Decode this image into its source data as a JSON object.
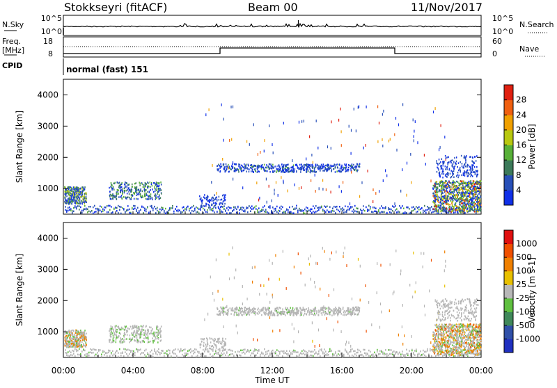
{
  "header": {
    "title": "Stokkseyri (fitACF)",
    "beam": "Beam 00",
    "date": "11/Nov/2017"
  },
  "noise_panel": {
    "left_label": "N.Sky",
    "right_label": "N.Search",
    "left_ticks": [
      "10^5",
      "10^0"
    ],
    "right_ticks": [
      "10^5",
      "10^0"
    ]
  },
  "freq_panel": {
    "left_label_1": "Freq.",
    "left_label_2": "[MHz]",
    "right_label": "Nave",
    "left_ticks": [
      "18",
      "8"
    ],
    "right_ticks": [
      "60",
      "0"
    ]
  },
  "cpid": {
    "label": "CPID",
    "mode": "normal (fast) 151"
  },
  "chart_data": [
    {
      "type": "heatmap",
      "title": "",
      "xlabel": "",
      "ylabel": "Slant Range [km]",
      "xlim": [
        "00:00",
        "24:00"
      ],
      "ylim": [
        180,
        4500
      ],
      "yticks": [
        "1000",
        "2000",
        "3000",
        "4000"
      ],
      "colorbar": {
        "label": "Power [dB]",
        "ticks": [
          "4",
          "8",
          "12",
          "16",
          "20",
          "24",
          "28"
        ],
        "colors": [
          "#1030e8",
          "#2850b8",
          "#3c7a5a",
          "#58b038",
          "#b8c810",
          "#f0a000",
          "#f06010",
          "#e02010"
        ]
      }
    },
    {
      "type": "heatmap",
      "title": "",
      "xlabel": "Time UT",
      "ylabel": "Slant Range [km]",
      "xlim": [
        "00:00",
        "24:00"
      ],
      "ylim": [
        180,
        4500
      ],
      "yticks": [
        "1000",
        "2000",
        "3000",
        "4000"
      ],
      "xticks": [
        "00:00",
        "04:00",
        "08:00",
        "12:00",
        "16:00",
        "20:00",
        "00:00"
      ],
      "colorbar": {
        "label": "Velocity [m s-1]",
        "ticks": [
          "1000",
          "500",
          "100",
          "25",
          "-25",
          "-100",
          "-500",
          "-1000"
        ],
        "colors": [
          "#2030c0",
          "#3050a8",
          "#40885a",
          "#60c040",
          "#b8b8b8",
          "#e8c000",
          "#f08000",
          "#f05000",
          "#e01010"
        ]
      }
    }
  ],
  "colors": {
    "ground": "#b4b4b4"
  }
}
